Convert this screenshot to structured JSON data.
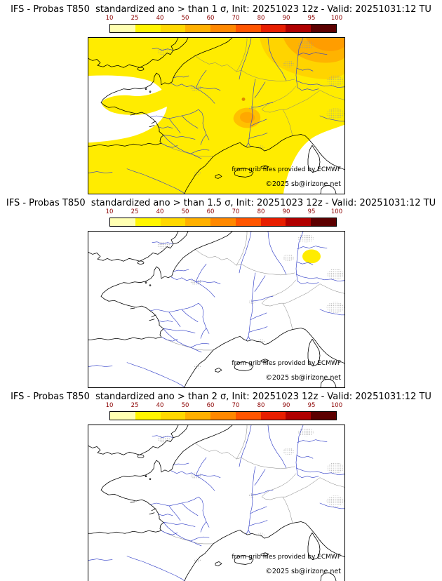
{
  "panels": [
    {
      "title": "IFS - Probas T850  standardized ano > than 1 σ, Init: 20251023 12z - Valid: 20251031:12 TU"
    },
    {
      "title": "IFS - Probas T850  standardized ano > than 1.5 σ, Init: 20251023 12z - Valid: 20251031:12 TU"
    },
    {
      "title": "IFS - Probas T850  standardized ano > than 2 σ, Init: 20251023 12z - Valid: 20251031:12 TU"
    }
  ],
  "map_credits": {
    "provider": "from grib files provided by ECMWF",
    "copyright": "©2025 sb@irizone.net"
  },
  "colorbar": {
    "ticks": [
      "10",
      "25",
      "40",
      "50",
      "60",
      "70",
      "80",
      "90",
      "95",
      "100"
    ],
    "segment_colors": [
      "#FFFFB2",
      "#FFF500",
      "#FFD800",
      "#FFB000",
      "#FF8800",
      "#FF5500",
      "#E81E00",
      "#B00000",
      "#5C0000"
    ],
    "tick_label_color": "#8B0000"
  },
  "map_colors": {
    "field": "#FFEC00",
    "orange_light": "#FFD400",
    "orange_mid": "#FFB300",
    "orange_deep": "#FF9D00",
    "orange_blob": "#FFC000",
    "orange_core": "#FFA800",
    "orange_dot": "#E08A00",
    "river": "#3340C8",
    "coast": "#000000",
    "border": "#808080",
    "urban_dot": "#999999"
  }
}
